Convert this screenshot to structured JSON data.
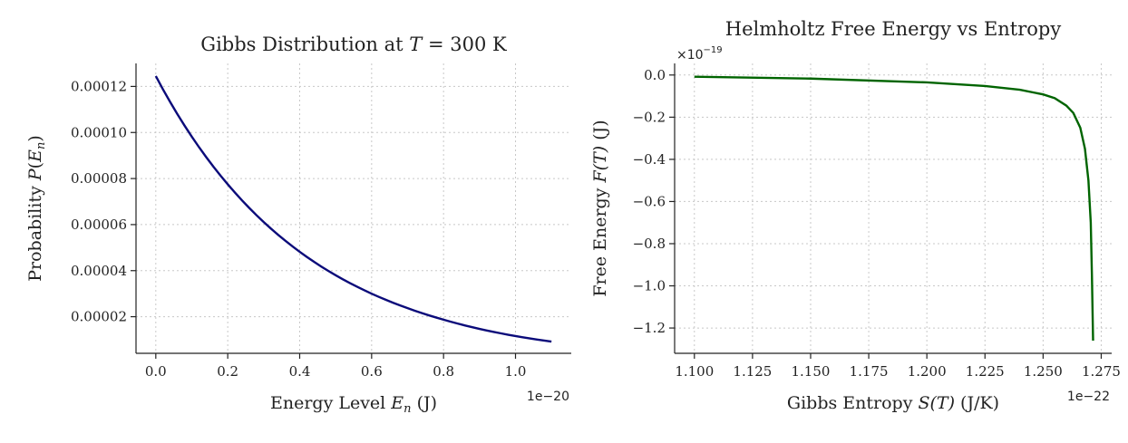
{
  "chart_data": [
    {
      "type": "line",
      "title": "Gibbs Distribution at T = 300 K",
      "xlabel": "Energy Level E_n (J)",
      "ylabel": "Probability P(E_n)",
      "x_offset_label": "1e−20",
      "x_scale": 1e-20,
      "xlim": [
        -0.055,
        1.155
      ],
      "ylim": [
        4.1e-06,
        0.00013
      ],
      "grid": true,
      "x_ticks": [
        0.0,
        0.2,
        0.4,
        0.6,
        0.8,
        1.0
      ],
      "x_tick_labels": [
        "0.0",
        "0.2",
        "0.4",
        "0.6",
        "0.8",
        "1.0"
      ],
      "y_ticks": [
        2e-05,
        4e-05,
        6e-05,
        8e-05,
        0.0001,
        0.00012
      ],
      "y_tick_labels": [
        "0.00002",
        "0.00004",
        "0.00006",
        "0.00008",
        "0.00010",
        "0.00012"
      ],
      "series": [
        {
          "color": "#0b0b7a",
          "x": [
            0.0,
            0.1,
            0.2,
            0.3,
            0.4,
            0.5,
            0.6,
            0.7,
            0.8,
            0.9,
            1.0,
            1.1
          ],
          "y": [
            0.0001245,
            9.82e-05,
            7.75e-05,
            6.11e-05,
            4.82e-05,
            3.8e-05,
            3e-05,
            2.37e-05,
            1.87e-05,
            1.47e-05,
            1.16e-05,
            9.2e-06
          ]
        }
      ]
    },
    {
      "type": "line",
      "title": "Helmholtz Free Energy vs Entropy",
      "xlabel": "Gibbs Entropy S(T) (J/K)",
      "ylabel": "Free Energy F(T) (J)",
      "x_offset_label": "1e−22",
      "y_offset_label": "×10−19",
      "x_scale": 1e-22,
      "y_scale": 1e-19,
      "xlim": [
        1.0915,
        1.2795
      ],
      "ylim": [
        -1.32,
        0.055
      ],
      "grid": true,
      "x_ticks": [
        1.1,
        1.125,
        1.15,
        1.175,
        1.2,
        1.225,
        1.25,
        1.275
      ],
      "x_tick_labels": [
        "1.100",
        "1.125",
        "1.150",
        "1.175",
        "1.200",
        "1.225",
        "1.250",
        "1.275"
      ],
      "y_ticks": [
        0.0,
        -0.2,
        -0.4,
        -0.6,
        -0.8,
        -1.0,
        -1.2
      ],
      "y_tick_labels": [
        "0.0",
        "−0.2",
        "−0.4",
        "−0.6",
        "−0.8",
        "−1.0",
        "−1.2"
      ],
      "series": [
        {
          "color": "#006400",
          "x": [
            1.1,
            1.15,
            1.2,
            1.225,
            1.24,
            1.25,
            1.255,
            1.26,
            1.263,
            1.266,
            1.268,
            1.2695,
            1.2705,
            1.271,
            1.2715
          ],
          "y": [
            -0.008,
            -0.017,
            -0.035,
            -0.052,
            -0.07,
            -0.092,
            -0.11,
            -0.145,
            -0.18,
            -0.25,
            -0.35,
            -0.5,
            -0.7,
            -0.95,
            -1.26
          ]
        }
      ]
    }
  ],
  "titles": {
    "left": "Gibbs Distribution at",
    "left_T": "T",
    "left_eq": " = 300 K",
    "right": "Helmholtz Free Energy vs Entropy"
  },
  "labels": {
    "left_x_prefix": "Energy Level ",
    "left_x_var": "E",
    "left_x_sub": "n",
    "left_x_suffix": " (J)",
    "left_y_prefix": "Probability ",
    "left_y_var": "P",
    "left_y_open": "(",
    "left_y_sub": "n",
    "left_y_close": ")",
    "right_x_prefix": "Gibbs Entropy ",
    "right_x_var": "S",
    "right_x_arg": "(T)",
    "right_x_suffix": " (J/K)",
    "right_y_prefix": "Free Energy ",
    "right_y_var": "F",
    "right_y_arg": "(T)",
    "right_y_suffix": " (J)",
    "left_offset": "1e−20",
    "right_offset_x": "1e−22",
    "right_offset_y_base": "×10",
    "right_offset_y_exp": "−19"
  }
}
